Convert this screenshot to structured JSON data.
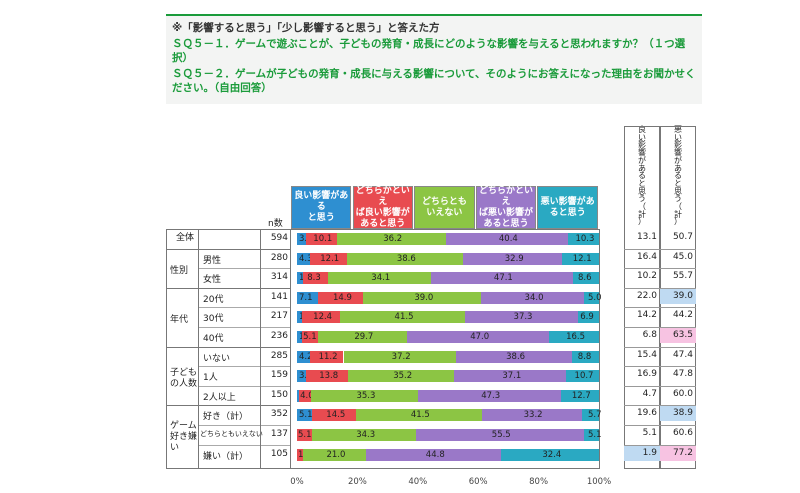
{
  "header": {
    "line1": "※「影響すると思う」「少し影響すると思う」と答えた方",
    "line2a": "ＳＱ５－１．ゲームで遊ぶことが、子どもの発育・成長にどのような影響を与えると思われますか？（１つ選",
    "line2b": "択）",
    "line3a": "ＳＱ５－２．ゲームが子どもの発育・成長に与える影響について、そのようにお答えになった理由をお聞かせく",
    "line3b": "ださい。（自由回答）"
  },
  "n_header": "n数",
  "legend": [
    {
      "label": "良い影響がある\nと思う",
      "color": "#2e8fd1"
    },
    {
      "label": "どちらかといえ\nば良い影響が\nあると思う",
      "color": "#e84b50"
    },
    {
      "label": "どちらとも\nいえない",
      "color": "#8cc544"
    },
    {
      "label": "どちらかといえ\nば悪い影響が\nあると思う",
      "color": "#9a78c8"
    },
    {
      "label": "悪い影響があ\nると思う",
      "color": "#2aa9c2"
    }
  ],
  "summary_headers": [
    "良\nい\n影\n響\nが\nあ\nる\nと\n思\nう\n（\n計\n）",
    "悪\nい\n影\n響\nが\nあ\nる\nと\n思\nう\n（\n計\n）"
  ],
  "groups": [
    {
      "label": "全体",
      "first_row": 0,
      "rows": 1
    },
    {
      "label": "性別",
      "first_row": 1,
      "rows": 2
    },
    {
      "label": "年代",
      "first_row": 3,
      "rows": 3
    },
    {
      "label": "子ども\nの人数",
      "first_row": 6,
      "rows": 3
    },
    {
      "label": "ゲーム\n好き嫌\nい",
      "first_row": 9,
      "rows": 3
    }
  ],
  "chart_data": {
    "type": "bar",
    "stacked": true,
    "orientation": "horizontal",
    "percent": true,
    "xlim": [
      0,
      100
    ],
    "xticks": [
      "0%",
      "20%",
      "40%",
      "60%",
      "80%",
      "100%"
    ],
    "series_names": [
      "良い影響があると思う",
      "どちらかといえば良い影響があると思う",
      "どちらともいえない",
      "どちらかといえば悪い影響があると思う",
      "悪い影響があると思う"
    ],
    "rows": [
      {
        "label": "",
        "n": "594",
        "values": [
          3.0,
          10.1,
          36.2,
          40.4,
          10.3
        ],
        "labels": [
          "3.0",
          "10.1",
          "36.2",
          "40.4",
          "10.3"
        ],
        "good": "13.1",
        "bad": "50.7"
      },
      {
        "label": "男性",
        "n": "280",
        "values": [
          4.3,
          12.1,
          38.6,
          32.9,
          12.1
        ],
        "labels": [
          "4.3",
          "12.1",
          "38.6",
          "32.9",
          "12.1"
        ],
        "good": "16.4",
        "bad": "45.0"
      },
      {
        "label": "女性",
        "n": "314",
        "values": [
          1.9,
          8.3,
          34.1,
          47.1,
          8.6
        ],
        "labels": [
          "1.9",
          "8.3",
          "34.1",
          "47.1",
          "8.6"
        ],
        "good": "10.2",
        "bad": "55.7"
      },
      {
        "label": "20代",
        "n": "141",
        "values": [
          7.1,
          14.9,
          39.0,
          34.0,
          5.0
        ],
        "labels": [
          "7.1",
          "14.9",
          "39.0",
          "34.0",
          "5.0"
        ],
        "good": "22.0",
        "bad": "39.0"
      },
      {
        "label": "30代",
        "n": "217",
        "values": [
          1.8,
          12.4,
          41.5,
          37.3,
          6.9
        ],
        "labels": [
          "1.8",
          "12.4",
          "41.5",
          "37.3",
          "6.9"
        ],
        "good": "14.2",
        "bad": "44.2"
      },
      {
        "label": "40代",
        "n": "236",
        "values": [
          1.7,
          5.1,
          29.7,
          47.0,
          16.5
        ],
        "labels": [
          "1.7",
          "5.1",
          "29.7",
          "47.0",
          "16.5"
        ],
        "good": "6.8",
        "bad": "63.5"
      },
      {
        "label": "いない",
        "n": "285",
        "values": [
          4.2,
          11.2,
          37.2,
          38.6,
          8.8
        ],
        "labels": [
          "4.2",
          "11.2",
          "37.2",
          "38.6",
          "8.8"
        ],
        "good": "15.4",
        "bad": "47.4"
      },
      {
        "label": "1人",
        "n": "159",
        "values": [
          3.1,
          13.8,
          35.2,
          37.1,
          10.7
        ],
        "labels": [
          "3.1",
          "13.8",
          "35.2",
          "37.1",
          "10.7"
        ],
        "good": "16.9",
        "bad": "47.8"
      },
      {
        "label": "2人以上",
        "n": "150",
        "values": [
          0.7,
          4.0,
          35.3,
          47.3,
          12.7
        ],
        "labels": [
          "0.7",
          "4.0",
          "35.3",
          "47.3",
          "12.7"
        ],
        "good": "4.7",
        "bad": "60.0"
      },
      {
        "label": "好き（計）",
        "n": "352",
        "values": [
          5.1,
          14.5,
          41.5,
          33.2,
          5.7
        ],
        "labels": [
          "5.1",
          "14.5",
          "41.5",
          "33.2",
          "5.7"
        ],
        "good": "19.6",
        "bad": "38.9"
      },
      {
        "label": "どちらともいえない",
        "n": "137",
        "values": [
          0.0,
          5.1,
          34.3,
          55.5,
          5.1
        ],
        "labels": [
          "",
          "5.1",
          "34.3",
          "55.5",
          "5.1"
        ],
        "good": "5.1",
        "bad": "60.6"
      },
      {
        "label": "嫌い（計）",
        "n": "105",
        "values": [
          0.0,
          1.9,
          21.0,
          44.8,
          32.4
        ],
        "labels": [
          "",
          "1.9",
          "21.0",
          "44.8",
          "32.4"
        ],
        "good": "1.9",
        "bad": "77.2"
      }
    ],
    "highlight": {
      "good_blue": [
        11
      ],
      "bad_blue": [
        3,
        9
      ],
      "bad_pink": [
        5,
        11
      ]
    },
    "highlight_colors": {
      "blue": "#bfdaf2",
      "pink": "#f7c3e2"
    }
  }
}
